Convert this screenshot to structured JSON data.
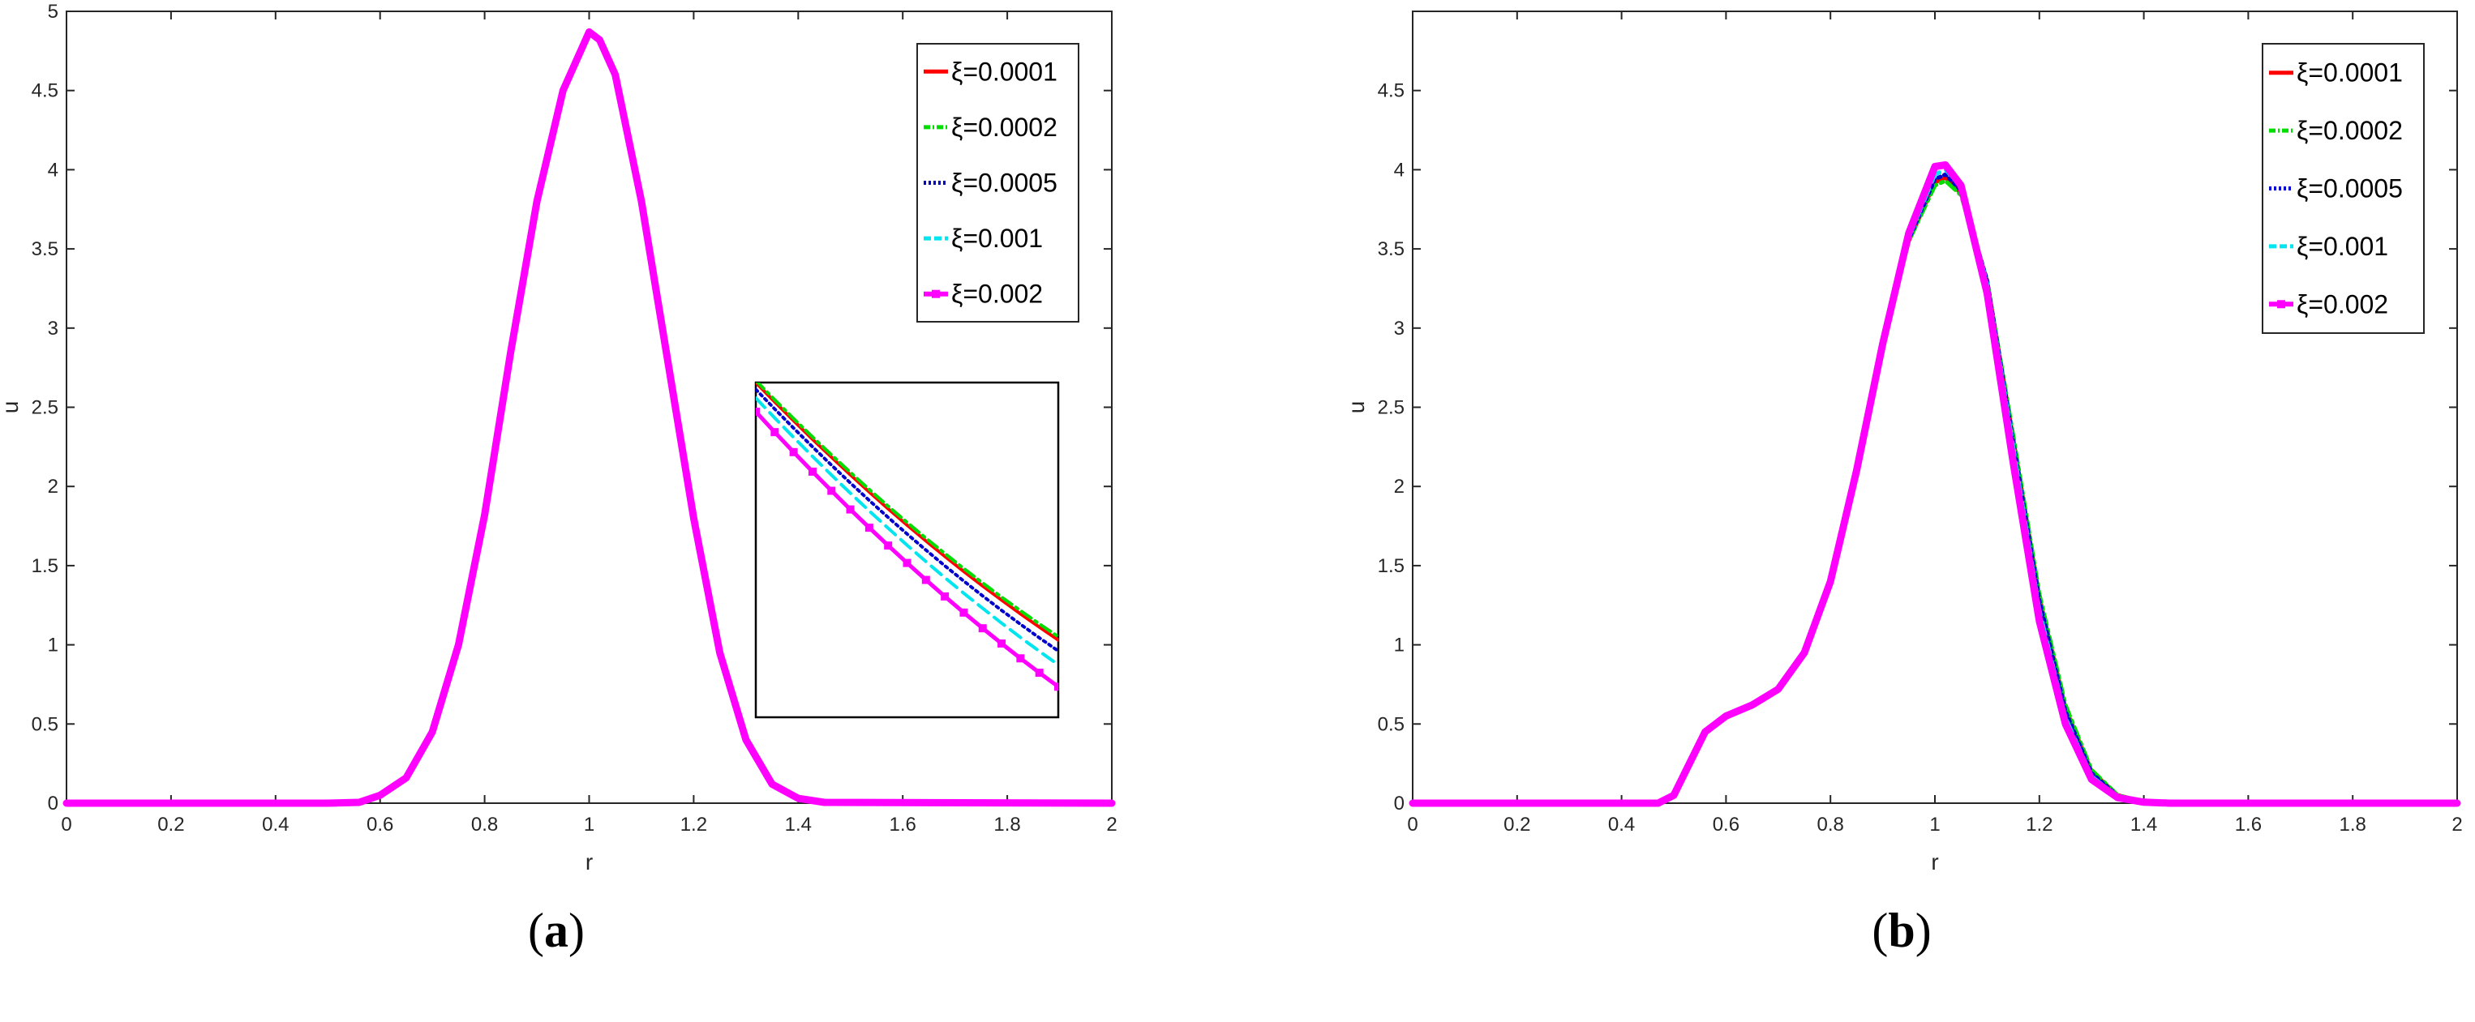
{
  "chart_data": [
    {
      "type": "line",
      "caption_letter": "a",
      "xlabel": "r",
      "ylabel": "u",
      "xlim": [
        0,
        2
      ],
      "ylim": [
        0,
        5
      ],
      "xticks": [
        "0",
        "0.2",
        "0.4",
        "0.6",
        "0.8",
        "1",
        "1.2",
        "1.4",
        "1.6",
        "1.8",
        "2"
      ],
      "yticks": [
        "0",
        "0.5",
        "1",
        "1.5",
        "2",
        "2.5",
        "3",
        "3.5",
        "4",
        "4.5",
        "5"
      ],
      "legend_position": "top-right",
      "inset": true,
      "x": [
        0,
        0.5,
        0.56,
        0.6,
        0.65,
        0.7,
        0.75,
        0.8,
        0.85,
        0.9,
        0.95,
        1.0,
        1.02,
        1.05,
        1.1,
        1.15,
        1.2,
        1.25,
        1.3,
        1.35,
        1.4,
        1.45,
        2.0
      ],
      "series": [
        {
          "name": "ξ=0.0001",
          "color": "#ff0000",
          "style": "solid",
          "values": [
            0,
            0,
            0.005,
            0.05,
            0.16,
            0.45,
            1.0,
            1.82,
            2.85,
            3.8,
            4.5,
            4.87,
            4.82,
            4.6,
            3.8,
            2.8,
            1.8,
            0.95,
            0.4,
            0.12,
            0.03,
            0.005,
            0
          ]
        },
        {
          "name": "ξ=0.0002",
          "color": "#00dd00",
          "style": "dashdot",
          "values": [
            0,
            0,
            0.005,
            0.05,
            0.16,
            0.45,
            1.0,
            1.82,
            2.85,
            3.8,
            4.5,
            4.87,
            4.82,
            4.6,
            3.8,
            2.8,
            1.8,
            0.95,
            0.4,
            0.12,
            0.03,
            0.005,
            0
          ]
        },
        {
          "name": "ξ=0.0005",
          "color": "#0000cc",
          "style": "dotted",
          "values": [
            0,
            0,
            0.005,
            0.05,
            0.16,
            0.45,
            1.0,
            1.82,
            2.85,
            3.8,
            4.5,
            4.87,
            4.82,
            4.6,
            3.8,
            2.8,
            1.8,
            0.95,
            0.4,
            0.12,
            0.03,
            0.005,
            0
          ]
        },
        {
          "name": "ξ=0.001",
          "color": "#00e5ee",
          "style": "dashed",
          "values": [
            0,
            0,
            0.005,
            0.05,
            0.16,
            0.45,
            1.0,
            1.82,
            2.85,
            3.8,
            4.5,
            4.87,
            4.82,
            4.6,
            3.8,
            2.8,
            1.8,
            0.95,
            0.4,
            0.12,
            0.03,
            0.005,
            0
          ]
        },
        {
          "name": "ξ=0.002",
          "color": "#ff00ff",
          "style": "solid-marker",
          "values": [
            0,
            0,
            0.005,
            0.05,
            0.16,
            0.45,
            1.0,
            1.82,
            2.85,
            3.8,
            4.5,
            4.87,
            4.82,
            4.6,
            3.8,
            2.8,
            1.8,
            0.95,
            0.4,
            0.12,
            0.03,
            0.005,
            0
          ]
        }
      ]
    },
    {
      "type": "line",
      "caption_letter": "b",
      "xlabel": "r",
      "ylabel": "u",
      "xlim": [
        0,
        2
      ],
      "ylim": [
        0,
        5
      ],
      "xticks": [
        "0",
        "0.2",
        "0.4",
        "0.6",
        "0.8",
        "1",
        "1.2",
        "1.4",
        "1.6",
        "1.8",
        "2"
      ],
      "yticks": [
        "0",
        "0.5",
        "1",
        "1.5",
        "2",
        "2.5",
        "3",
        "3.5",
        "4",
        "4.5"
      ],
      "legend_position": "top-right",
      "x": [
        0,
        0.47,
        0.5,
        0.53,
        0.56,
        0.6,
        0.65,
        0.7,
        0.75,
        0.8,
        0.85,
        0.9,
        0.95,
        1.0,
        1.02,
        1.05,
        1.1,
        1.15,
        1.2,
        1.25,
        1.3,
        1.35,
        1.4,
        1.45,
        2.0
      ],
      "series": [
        {
          "name": "ξ=0.0001",
          "color": "#ff0000",
          "style": "solid",
          "values": [
            0,
            0,
            0.05,
            0.25,
            0.45,
            0.55,
            0.62,
            0.72,
            0.95,
            1.4,
            2.1,
            2.9,
            3.55,
            3.92,
            3.95,
            3.85,
            3.3,
            2.3,
            1.3,
            0.6,
            0.2,
            0.05,
            0.01,
            0,
            0
          ]
        },
        {
          "name": "ξ=0.0002",
          "color": "#00dd00",
          "style": "dashdot",
          "values": [
            0,
            0,
            0.05,
            0.25,
            0.45,
            0.55,
            0.62,
            0.72,
            0.95,
            1.4,
            2.1,
            2.9,
            3.55,
            3.9,
            3.93,
            3.84,
            3.3,
            2.32,
            1.32,
            0.62,
            0.21,
            0.05,
            0.01,
            0,
            0
          ]
        },
        {
          "name": "ξ=0.0005",
          "color": "#0000cc",
          "style": "dotted",
          "values": [
            0,
            0,
            0.05,
            0.25,
            0.45,
            0.55,
            0.62,
            0.72,
            0.95,
            1.4,
            2.1,
            2.9,
            3.56,
            3.94,
            3.97,
            3.87,
            3.3,
            2.28,
            1.28,
            0.58,
            0.19,
            0.045,
            0.01,
            0,
            0
          ]
        },
        {
          "name": "ξ=0.001",
          "color": "#00e5ee",
          "style": "dashed",
          "values": [
            0,
            0,
            0.05,
            0.25,
            0.45,
            0.55,
            0.62,
            0.72,
            0.95,
            1.4,
            2.1,
            2.9,
            3.57,
            3.97,
            4.0,
            3.9,
            3.28,
            2.25,
            1.22,
            0.54,
            0.17,
            0.04,
            0.008,
            0,
            0
          ]
        },
        {
          "name": "ξ=0.002",
          "color": "#ff00ff",
          "style": "solid-marker",
          "values": [
            0,
            0,
            0.05,
            0.25,
            0.45,
            0.55,
            0.62,
            0.72,
            0.95,
            1.4,
            2.1,
            2.9,
            3.6,
            4.02,
            4.03,
            3.9,
            3.22,
            2.15,
            1.15,
            0.5,
            0.15,
            0.035,
            0.006,
            0,
            0
          ]
        }
      ]
    }
  ]
}
